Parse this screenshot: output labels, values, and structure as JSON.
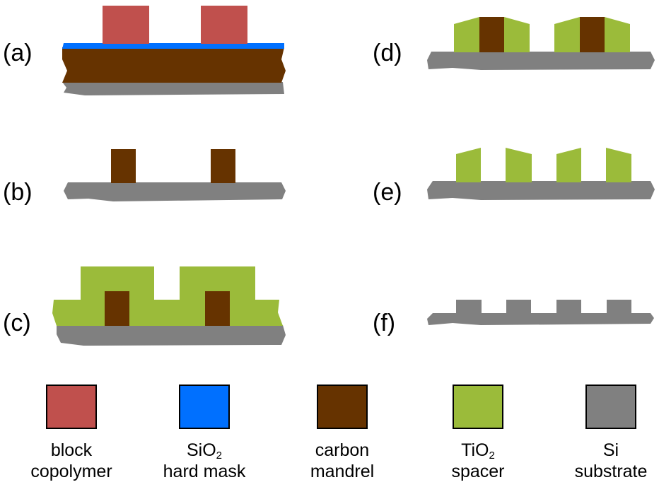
{
  "panels": {
    "a": "(a)",
    "b": "(b)",
    "c": "(c)",
    "d": "(d)",
    "e": "(e)",
    "f": "(f)"
  },
  "colors": {
    "block_copolymer": "#c0504d",
    "sio2_hard_mask": "#0070ff",
    "carbon_mandrel": "#663300",
    "tio2_spacer": "#9bbb3a",
    "si_substrate": "#808080"
  },
  "legend": [
    {
      "key": "block_copolymer",
      "line1": "block",
      "line2": "copolymer"
    },
    {
      "key": "sio2_hard_mask",
      "line1_main": "SiO",
      "line1_sub": "2",
      "line2": "hard mask"
    },
    {
      "key": "carbon_mandrel",
      "line1": "carbon",
      "line2": "mandrel"
    },
    {
      "key": "tio2_spacer",
      "line1_main": "TiO",
      "line1_sub": "2",
      "line2": "spacer"
    },
    {
      "key": "si_substrate",
      "line1": "Si",
      "line2": "substrate"
    }
  ]
}
